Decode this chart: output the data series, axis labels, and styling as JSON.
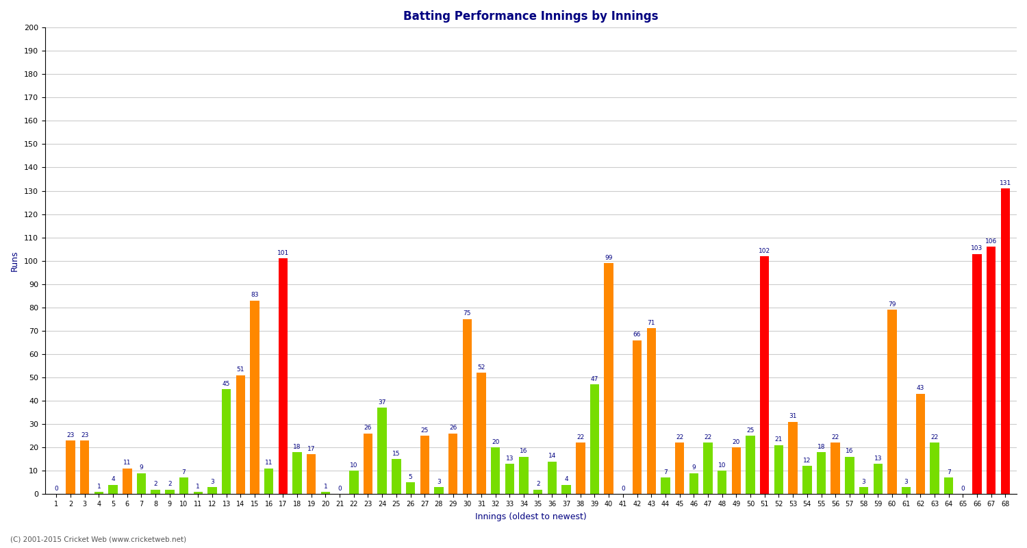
{
  "title": "Batting Performance Innings by Innings",
  "xlabel": "Innings (oldest to newest)",
  "ylabel": "Runs",
  "footer": "(C) 2001-2015 Cricket Web (www.cricketweb.net)",
  "ylim": [
    0,
    200
  ],
  "yticks": [
    0,
    10,
    20,
    30,
    40,
    50,
    60,
    70,
    80,
    90,
    100,
    110,
    120,
    130,
    140,
    150,
    160,
    170,
    180,
    190,
    200
  ],
  "innings": [
    1,
    2,
    3,
    4,
    5,
    6,
    7,
    8,
    9,
    10,
    11,
    12,
    13,
    14,
    15,
    16,
    17,
    18,
    19,
    20,
    21,
    22,
    23,
    24,
    25,
    26,
    27,
    28,
    29,
    30,
    31,
    32,
    33,
    34,
    35,
    36,
    37,
    38,
    39,
    40,
    41,
    42,
    43,
    44,
    45,
    46,
    47,
    48,
    49,
    50,
    51,
    52,
    53,
    54,
    55,
    56,
    57,
    58,
    59,
    60,
    61,
    62,
    63,
    64,
    65,
    66,
    67,
    68
  ],
  "values": [
    0,
    23,
    23,
    1,
    4,
    11,
    9,
    2,
    2,
    7,
    1,
    3,
    45,
    51,
    83,
    11,
    101,
    18,
    17,
    1,
    0,
    10,
    26,
    37,
    15,
    5,
    25,
    3,
    26,
    75,
    52,
    20,
    13,
    16,
    2,
    14,
    4,
    22,
    47,
    99,
    0,
    66,
    71,
    7,
    22,
    9,
    22,
    10,
    20,
    25,
    102,
    21,
    31,
    12,
    18,
    22,
    16,
    3,
    13,
    79,
    3,
    43,
    22,
    7,
    0,
    103,
    106,
    131
  ],
  "colors": [
    "green",
    "orange",
    "orange",
    "green",
    "green",
    "orange",
    "green",
    "green",
    "green",
    "green",
    "green",
    "green",
    "green",
    "orange",
    "orange",
    "green",
    "red",
    "green",
    "orange",
    "green",
    "green",
    "green",
    "orange",
    "green",
    "green",
    "green",
    "orange",
    "green",
    "orange",
    "orange",
    "orange",
    "green",
    "green",
    "green",
    "green",
    "green",
    "green",
    "orange",
    "green",
    "orange",
    "green",
    "orange",
    "orange",
    "green",
    "orange",
    "green",
    "green",
    "green",
    "orange",
    "green",
    "red",
    "green",
    "orange",
    "green",
    "green",
    "orange",
    "green",
    "green",
    "green",
    "orange",
    "green",
    "orange",
    "green",
    "green",
    "green",
    "red",
    "red",
    "red"
  ],
  "bar_color_map": {
    "green": "#77dd00",
    "orange": "#ff8800",
    "red": "#ff0000"
  },
  "title_color": "#000080",
  "label_color": "#000080",
  "background_color": "#ffffff",
  "grid_color": "#cccccc",
  "tick_label_size": 7,
  "value_label_size": 6.5,
  "bar_width": 0.65
}
